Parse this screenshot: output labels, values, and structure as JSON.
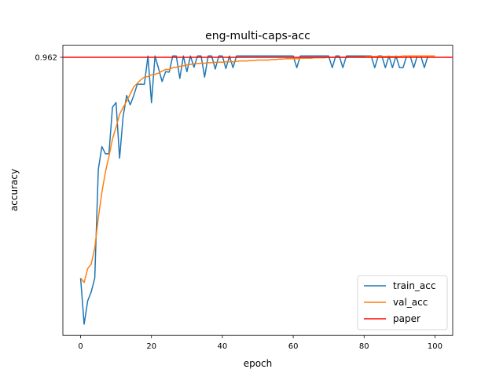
{
  "chart_data": {
    "type": "line",
    "title": "eng-multi-caps-acc",
    "xlabel": "epoch",
    "ylabel": "accuracy",
    "xlim": [
      -5,
      105
    ],
    "ylim": [
      0.9,
      0.9647
    ],
    "x_ticks": [
      0,
      20,
      40,
      60,
      80,
      100
    ],
    "y_ticks": [
      0.962
    ],
    "y_tick_labels": [
      "0.962"
    ],
    "legend_position": "bottom-right",
    "grid": false,
    "series": [
      {
        "name": "train_acc",
        "color": "#1f77b4",
        "x": [
          0,
          1,
          2,
          3,
          4,
          5,
          6,
          7,
          8,
          9,
          10,
          11,
          12,
          13,
          14,
          15,
          16,
          17,
          18,
          19,
          20,
          21,
          22,
          23,
          24,
          25,
          26,
          27,
          28,
          29,
          30,
          31,
          32,
          33,
          34,
          35,
          36,
          37,
          38,
          39,
          40,
          41,
          42,
          43,
          44,
          45,
          46,
          47,
          48,
          49,
          50,
          51,
          52,
          53,
          54,
          55,
          56,
          57,
          58,
          59,
          60,
          61,
          62,
          63,
          64,
          65,
          66,
          67,
          68,
          69,
          70,
          71,
          72,
          73,
          74,
          75,
          76,
          77,
          78,
          79,
          80,
          81,
          82,
          83,
          84,
          85,
          86,
          87,
          88,
          89,
          90,
          91,
          92,
          93,
          94,
          95,
          96,
          97,
          98,
          99,
          100
        ],
        "y": [
          0.9128,
          0.9025,
          0.9077,
          0.9097,
          0.9128,
          0.937,
          0.9421,
          0.9405,
          0.9405,
          0.9509,
          0.9519,
          0.9395,
          0.9488,
          0.9535,
          0.9514,
          0.9535,
          0.956,
          0.956,
          0.956,
          0.9623,
          0.9519,
          0.9623,
          0.9595,
          0.9566,
          0.9588,
          0.9587,
          0.9623,
          0.9623,
          0.9573,
          0.9623,
          0.9588,
          0.9623,
          0.9598,
          0.9623,
          0.9623,
          0.9576,
          0.9623,
          0.9623,
          0.9594,
          0.9623,
          0.9623,
          0.9595,
          0.9623,
          0.9597,
          0.9623,
          0.9623,
          0.9623,
          0.9623,
          0.9623,
          0.9623,
          0.9623,
          0.9623,
          0.9623,
          0.9623,
          0.9623,
          0.9623,
          0.9623,
          0.9623,
          0.9623,
          0.9623,
          0.9623,
          0.9597,
          0.9623,
          0.9623,
          0.9623,
          0.9623,
          0.9623,
          0.9623,
          0.9623,
          0.9623,
          0.9623,
          0.9597,
          0.9623,
          0.9623,
          0.9597,
          0.9623,
          0.9623,
          0.9623,
          0.9623,
          0.9623,
          0.9623,
          0.9623,
          0.9623,
          0.9597,
          0.9623,
          0.9623,
          0.9597,
          0.9623,
          0.9597,
          0.9623,
          0.9597,
          0.9597,
          0.9623,
          0.9623,
          0.9597,
          0.9623,
          0.9623,
          0.9597,
          0.9623,
          0.9623,
          0.9623
        ]
      },
      {
        "name": "val_acc",
        "color": "#ff7f0e",
        "x": [
          0,
          1,
          2,
          3,
          4,
          5,
          6,
          7,
          8,
          9,
          10,
          11,
          12,
          13,
          14,
          15,
          16,
          17,
          18,
          19,
          20,
          21,
          22,
          23,
          24,
          25,
          26,
          27,
          28,
          29,
          30,
          31,
          32,
          33,
          34,
          35,
          36,
          37,
          38,
          39,
          40,
          41,
          42,
          43,
          44,
          45,
          46,
          47,
          48,
          49,
          50,
          51,
          52,
          53,
          54,
          55,
          56,
          57,
          58,
          59,
          60,
          61,
          62,
          63,
          64,
          65,
          66,
          67,
          68,
          69,
          70,
          71,
          72,
          73,
          74,
          75,
          76,
          77,
          78,
          79,
          80,
          81,
          82,
          83,
          84,
          85,
          86,
          87,
          88,
          89,
          90,
          91,
          92,
          93,
          94,
          95,
          96,
          97,
          98,
          99,
          100
        ],
        "y": [
          0.9128,
          0.9118,
          0.9149,
          0.9159,
          0.9195,
          0.9262,
          0.9319,
          0.9364,
          0.9399,
          0.9438,
          0.9464,
          0.9493,
          0.9508,
          0.9522,
          0.9538,
          0.9554,
          0.9562,
          0.957,
          0.9576,
          0.9577,
          0.9581,
          0.9582,
          0.9585,
          0.9589,
          0.9593,
          0.9593,
          0.9597,
          0.9598,
          0.96,
          0.9601,
          0.9603,
          0.9604,
          0.9606,
          0.9606,
          0.9607,
          0.9607,
          0.9608,
          0.9608,
          0.9609,
          0.9609,
          0.9609,
          0.961,
          0.961,
          0.961,
          0.9611,
          0.9612,
          0.9612,
          0.9612,
          0.9613,
          0.9613,
          0.9614,
          0.9614,
          0.9614,
          0.9614,
          0.9615,
          0.9615,
          0.9616,
          0.9616,
          0.9617,
          0.9617,
          0.9617,
          0.9617,
          0.9618,
          0.9618,
          0.9618,
          0.9618,
          0.9619,
          0.9619,
          0.9619,
          0.9619,
          0.962,
          0.962,
          0.962,
          0.962,
          0.962,
          0.962,
          0.9621,
          0.9621,
          0.9621,
          0.9621,
          0.9621,
          0.9622,
          0.9622,
          0.9622,
          0.9622,
          0.9622,
          0.9622,
          0.9622,
          0.9622,
          0.9622,
          0.9622,
          0.9623,
          0.9623,
          0.9623,
          0.9623,
          0.9623,
          0.9623,
          0.9623,
          0.9623,
          0.9623,
          0.9623
        ]
      },
      {
        "name": "paper",
        "color": "#ff0000",
        "x": [
          -5,
          105
        ],
        "y": [
          0.962,
          0.962
        ]
      }
    ]
  }
}
